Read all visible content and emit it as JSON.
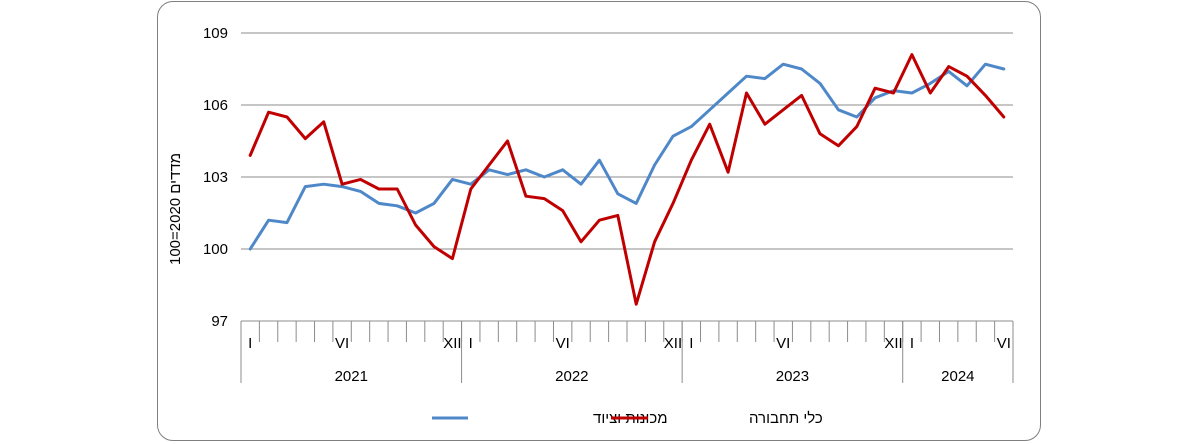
{
  "chart_data": {
    "type": "line",
    "title": "",
    "ylabel": "מדדים 2020=100",
    "ylim": [
      97,
      109
    ],
    "yticks": [
      97,
      100,
      103,
      106,
      109
    ],
    "grid": true,
    "legend_position": "bottom",
    "x_month_labels": [
      {
        "index": 0,
        "text": "I"
      },
      {
        "index": 5,
        "text": "VI"
      },
      {
        "index": 11,
        "text": "XII"
      },
      {
        "index": 12,
        "text": "I"
      },
      {
        "index": 17,
        "text": "VI"
      },
      {
        "index": 23,
        "text": "XII"
      },
      {
        "index": 24,
        "text": "I"
      },
      {
        "index": 29,
        "text": "VI"
      },
      {
        "index": 35,
        "text": "XII"
      },
      {
        "index": 36,
        "text": "I"
      },
      {
        "index": 41,
        "text": "VI"
      }
    ],
    "years": [
      {
        "label": "2021",
        "start": 0,
        "end": 11
      },
      {
        "label": "2022",
        "start": 12,
        "end": 23
      },
      {
        "label": "2023",
        "start": 24,
        "end": 35
      },
      {
        "label": "2024",
        "start": 36,
        "end": 41
      }
    ],
    "series": [
      {
        "name": "מכונות וציוד",
        "color": "#4f88c9",
        "values": [
          100.0,
          101.2,
          101.1,
          102.6,
          102.7,
          102.6,
          102.4,
          101.9,
          101.8,
          101.5,
          101.9,
          102.9,
          102.7,
          103.3,
          103.1,
          103.3,
          103.0,
          103.3,
          102.7,
          103.7,
          102.3,
          101.9,
          103.5,
          104.7,
          105.1,
          105.8,
          106.5,
          107.2,
          107.1,
          107.7,
          107.5,
          106.9,
          105.8,
          105.5,
          106.3,
          106.6,
          106.5,
          106.9,
          107.4,
          106.8,
          107.7,
          107.5
        ]
      },
      {
        "name": "כלי תחבורה",
        "color": "#c00000",
        "values": [
          103.9,
          105.7,
          105.5,
          104.6,
          105.3,
          102.7,
          102.9,
          102.5,
          102.5,
          101.0,
          100.1,
          99.6,
          102.5,
          103.5,
          104.5,
          102.2,
          102.1,
          101.6,
          100.3,
          101.2,
          101.4,
          97.7,
          100.3,
          101.9,
          103.7,
          105.2,
          103.2,
          106.5,
          105.2,
          105.8,
          106.4,
          104.8,
          104.3,
          105.1,
          106.7,
          106.5,
          108.1,
          106.5,
          107.6,
          107.2,
          106.4,
          105.5
        ]
      }
    ]
  }
}
